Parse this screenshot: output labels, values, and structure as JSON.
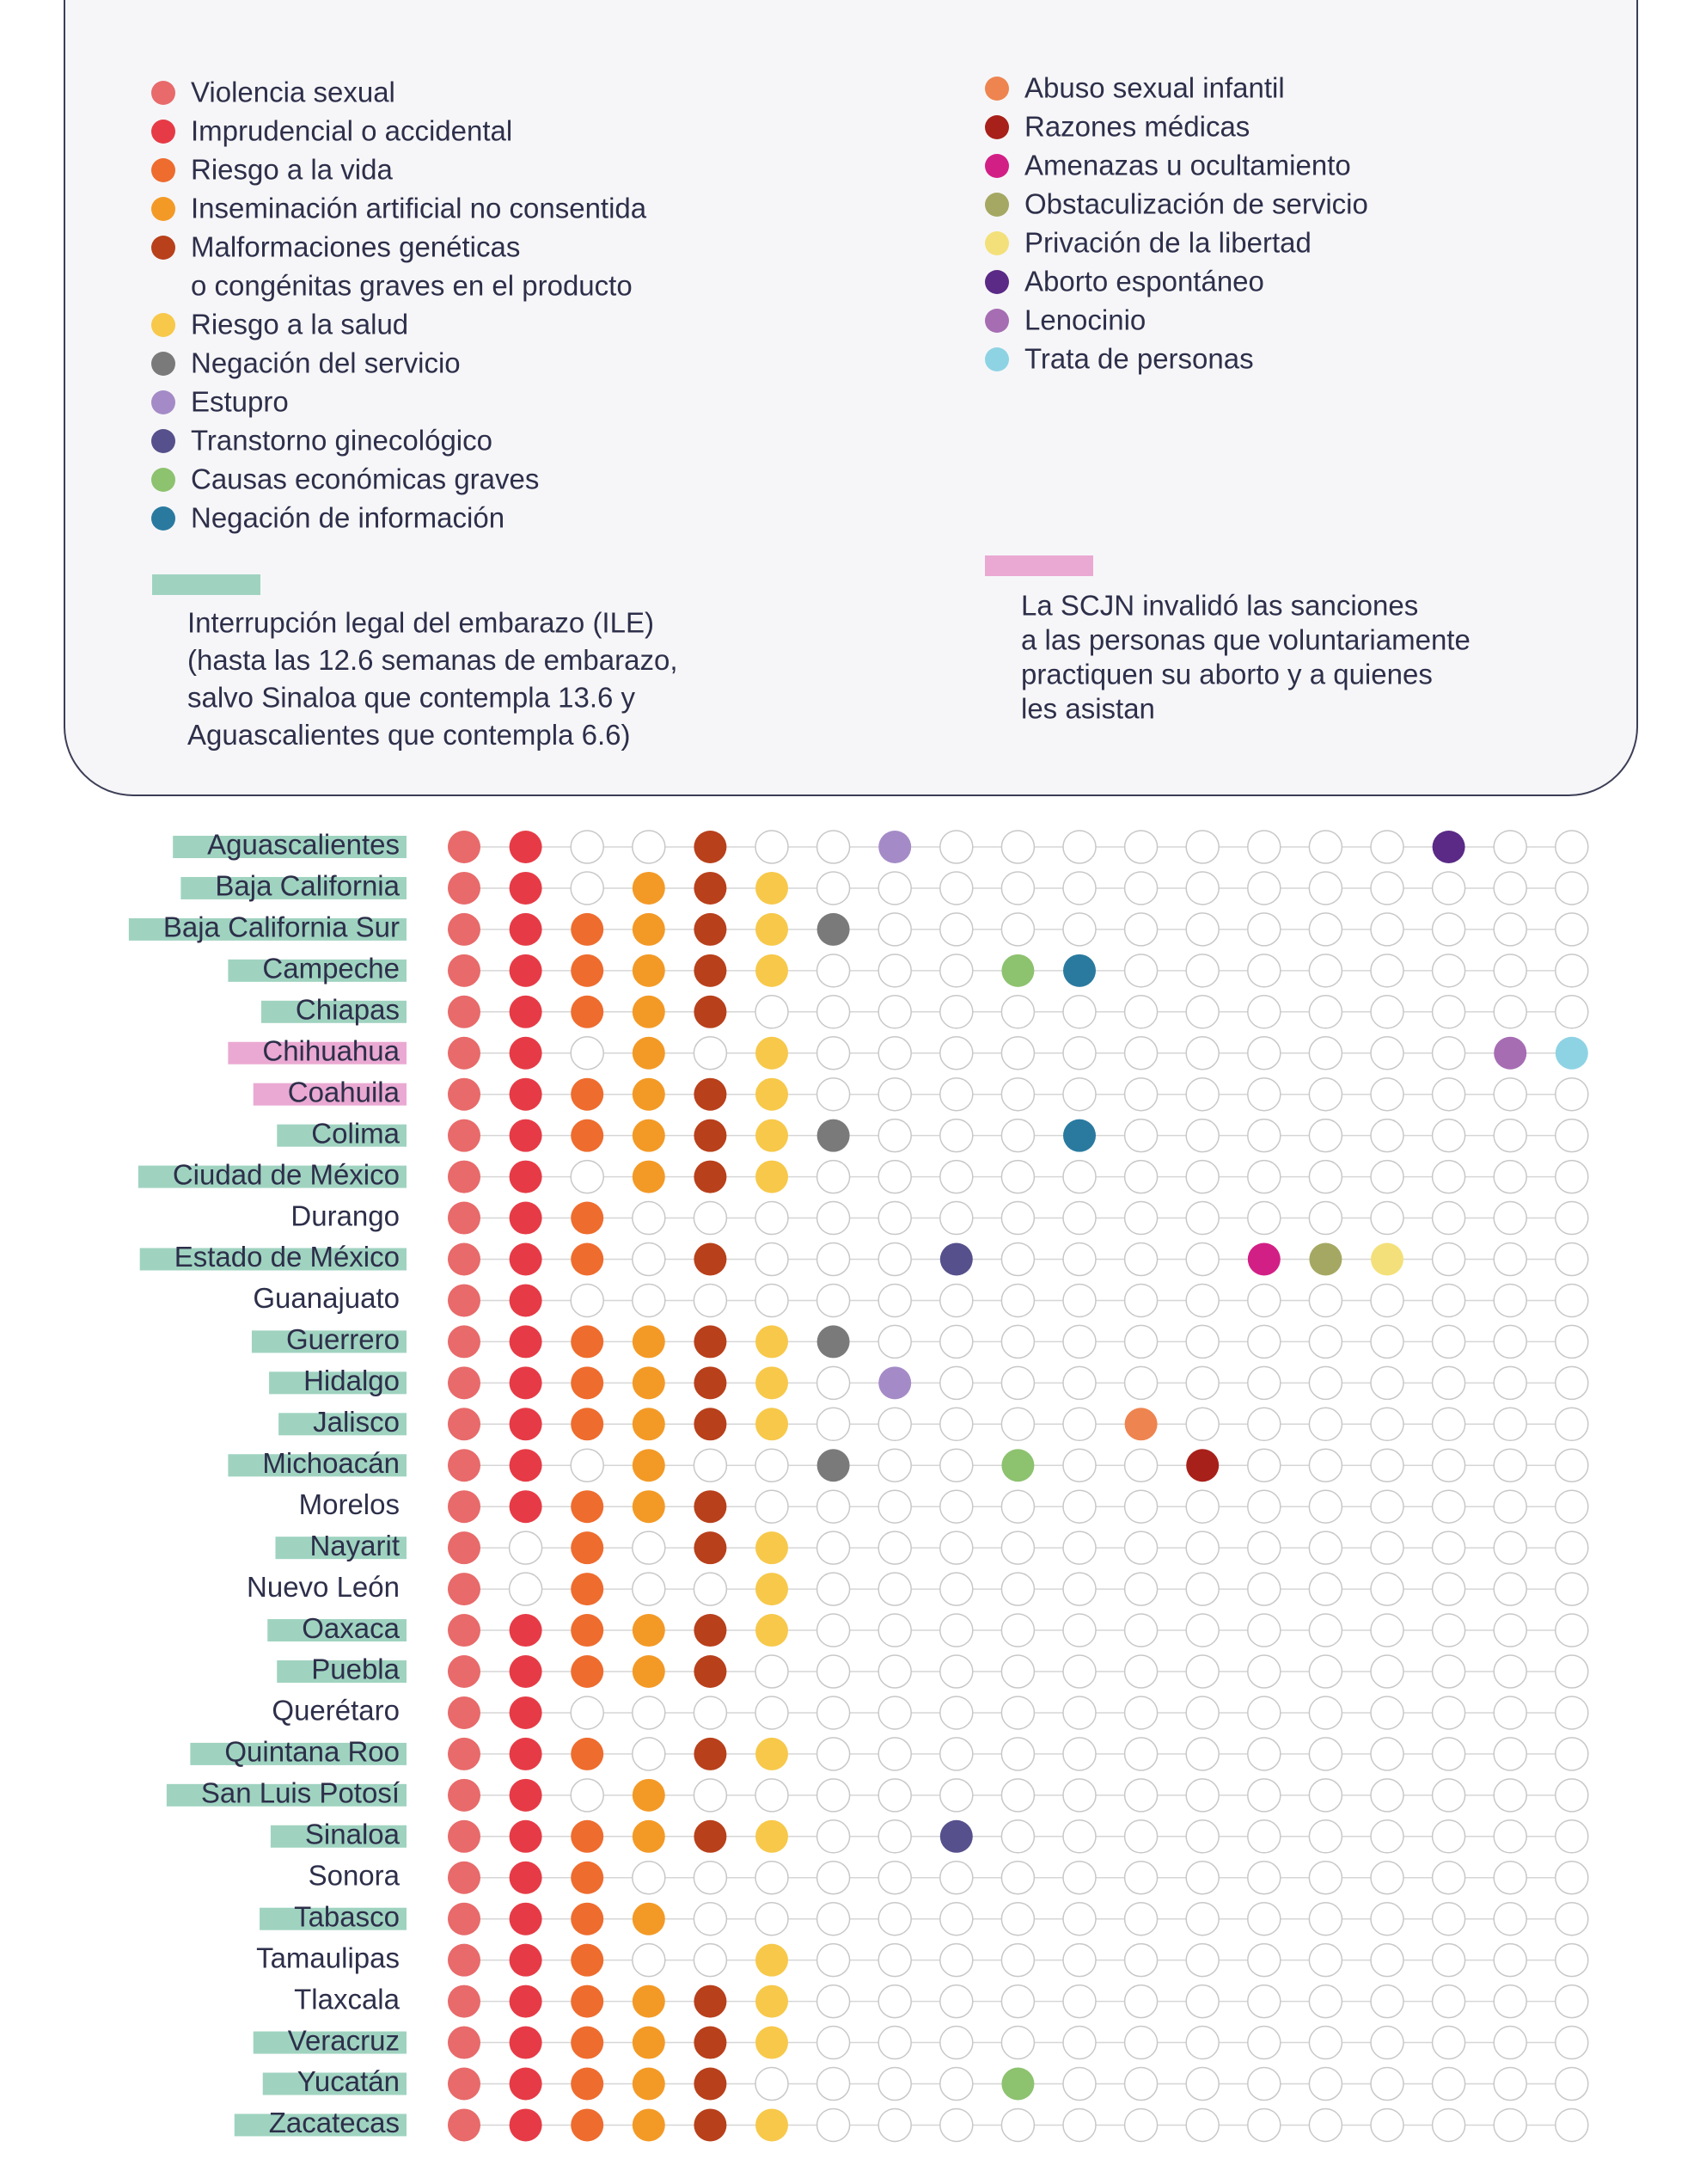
{
  "legend": {
    "causes": [
      {
        "label": [
          "Violencia sexual"
        ],
        "color": "#e86a6a"
      },
      {
        "label": [
          "Imprudencial o accidental"
        ],
        "color": "#e63b46"
      },
      {
        "label": [
          "Riesgo a la vida"
        ],
        "color": "#ee6c2e"
      },
      {
        "label": [
          "Inseminación artificial no consentida"
        ],
        "color": "#f39a26"
      },
      {
        "label": [
          "Malformaciones genéticas",
          "o congénitas graves en el producto"
        ],
        "color": "#b8401b"
      },
      {
        "label": [
          "Riesgo a la salud"
        ],
        "color": "#f7c84a"
      },
      {
        "label": [
          "Negación del servicio"
        ],
        "color": "#7a7a7a"
      },
      {
        "label": [
          "Estupro"
        ],
        "color": "#a48bc7"
      },
      {
        "label": [
          "Transtorno ginecológico"
        ],
        "color": "#56508c"
      },
      {
        "label": [
          "Causas económicas graves"
        ],
        "color": "#8dc26f"
      },
      {
        "label": [
          "Negación de información"
        ],
        "color": "#2a7aa0"
      },
      {
        "label": [
          "Abuso sexual infantil"
        ],
        "color": "#ee8450"
      },
      {
        "label": [
          "Razones médicas"
        ],
        "color": "#a8201a"
      },
      {
        "label": [
          "Amenazas u ocultamiento"
        ],
        "color": "#d21f86"
      },
      {
        "label": [
          "Obstaculización de servicio"
        ],
        "color": "#a5a862"
      },
      {
        "label": [
          "Privación de la libertad"
        ],
        "color": "#f3e07a"
      },
      {
        "label": [
          "Aborto espontáneo"
        ],
        "color": "#5a2a86"
      },
      {
        "label": [
          "Lenocinio"
        ],
        "color": "#a66db3"
      },
      {
        "label": [
          "Trata de personas"
        ],
        "color": "#8ed3e4"
      }
    ],
    "notes": [
      {
        "color": "#9fd3c0",
        "lines": [
          "Interrupción legal del embarazo (ILE)",
          "(hasta las 12.6 semanas de embarazo,",
          "salvo Sinaloa que contempla 13.6 y",
          "Aguascalientes que contempla 6.6)"
        ]
      },
      {
        "color": "#eaa9d2",
        "lines": [
          "La SCJN invalidó las sanciones",
          "a las personas que voluntariamente",
          "practiquen su aborto y a quienes",
          "les asistan"
        ]
      }
    ]
  },
  "states": [
    {
      "name": "Aguascalientes",
      "note": 0,
      "causes": [
        1,
        1,
        0,
        0,
        1,
        0,
        0,
        1,
        0,
        0,
        0,
        0,
        0,
        0,
        0,
        0,
        1,
        0,
        0
      ]
    },
    {
      "name": "Baja California",
      "note": 0,
      "causes": [
        1,
        1,
        0,
        1,
        1,
        1,
        0,
        0,
        0,
        0,
        0,
        0,
        0,
        0,
        0,
        0,
        0,
        0,
        0
      ]
    },
    {
      "name": "Baja California Sur",
      "note": 0,
      "causes": [
        1,
        1,
        1,
        1,
        1,
        1,
        1,
        0,
        0,
        0,
        0,
        0,
        0,
        0,
        0,
        0,
        0,
        0,
        0
      ]
    },
    {
      "name": "Campeche",
      "note": 0,
      "causes": [
        1,
        1,
        1,
        1,
        1,
        1,
        0,
        0,
        0,
        1,
        1,
        0,
        0,
        0,
        0,
        0,
        0,
        0,
        0
      ]
    },
    {
      "name": "Chiapas",
      "note": 0,
      "causes": [
        1,
        1,
        1,
        1,
        1,
        0,
        0,
        0,
        0,
        0,
        0,
        0,
        0,
        0,
        0,
        0,
        0,
        0,
        0
      ]
    },
    {
      "name": "Chihuahua",
      "note": 1,
      "causes": [
        1,
        1,
        0,
        1,
        0,
        1,
        0,
        0,
        0,
        0,
        0,
        0,
        0,
        0,
        0,
        0,
        0,
        1,
        1
      ]
    },
    {
      "name": "Coahuila",
      "note": 1,
      "causes": [
        1,
        1,
        1,
        1,
        1,
        1,
        0,
        0,
        0,
        0,
        0,
        0,
        0,
        0,
        0,
        0,
        0,
        0,
        0
      ]
    },
    {
      "name": "Colima",
      "note": 0,
      "causes": [
        1,
        1,
        1,
        1,
        1,
        1,
        1,
        0,
        0,
        0,
        1,
        0,
        0,
        0,
        0,
        0,
        0,
        0,
        0
      ]
    },
    {
      "name": "Ciudad de México",
      "note": 0,
      "causes": [
        1,
        1,
        0,
        1,
        1,
        1,
        0,
        0,
        0,
        0,
        0,
        0,
        0,
        0,
        0,
        0,
        0,
        0,
        0
      ]
    },
    {
      "name": "Durango",
      "note": null,
      "causes": [
        1,
        1,
        1,
        0,
        0,
        0,
        0,
        0,
        0,
        0,
        0,
        0,
        0,
        0,
        0,
        0,
        0,
        0,
        0
      ]
    },
    {
      "name": "Estado de México",
      "note": 0,
      "causes": [
        1,
        1,
        1,
        0,
        1,
        0,
        0,
        0,
        1,
        0,
        0,
        0,
        0,
        1,
        1,
        1,
        0,
        0,
        0
      ]
    },
    {
      "name": "Guanajuato",
      "note": null,
      "causes": [
        1,
        1,
        0,
        0,
        0,
        0,
        0,
        0,
        0,
        0,
        0,
        0,
        0,
        0,
        0,
        0,
        0,
        0,
        0
      ]
    },
    {
      "name": "Guerrero",
      "note": 0,
      "causes": [
        1,
        1,
        1,
        1,
        1,
        1,
        1,
        0,
        0,
        0,
        0,
        0,
        0,
        0,
        0,
        0,
        0,
        0,
        0
      ]
    },
    {
      "name": "Hidalgo",
      "note": 0,
      "causes": [
        1,
        1,
        1,
        1,
        1,
        1,
        0,
        1,
        0,
        0,
        0,
        0,
        0,
        0,
        0,
        0,
        0,
        0,
        0
      ]
    },
    {
      "name": "Jalisco",
      "note": 0,
      "causes": [
        1,
        1,
        1,
        1,
        1,
        1,
        0,
        0,
        0,
        0,
        0,
        1,
        0,
        0,
        0,
        0,
        0,
        0,
        0
      ]
    },
    {
      "name": "Michoacán",
      "note": 0,
      "causes": [
        1,
        1,
        0,
        1,
        0,
        0,
        1,
        0,
        0,
        1,
        0,
        0,
        1,
        0,
        0,
        0,
        0,
        0,
        0
      ]
    },
    {
      "name": "Morelos",
      "note": null,
      "causes": [
        1,
        1,
        1,
        1,
        1,
        0,
        0,
        0,
        0,
        0,
        0,
        0,
        0,
        0,
        0,
        0,
        0,
        0,
        0
      ]
    },
    {
      "name": "Nayarit",
      "note": 0,
      "causes": [
        1,
        0,
        1,
        0,
        1,
        1,
        0,
        0,
        0,
        0,
        0,
        0,
        0,
        0,
        0,
        0,
        0,
        0,
        0
      ]
    },
    {
      "name": "Nuevo León",
      "note": null,
      "causes": [
        1,
        0,
        1,
        0,
        0,
        1,
        0,
        0,
        0,
        0,
        0,
        0,
        0,
        0,
        0,
        0,
        0,
        0,
        0
      ]
    },
    {
      "name": "Oaxaca",
      "note": 0,
      "causes": [
        1,
        1,
        1,
        1,
        1,
        1,
        0,
        0,
        0,
        0,
        0,
        0,
        0,
        0,
        0,
        0,
        0,
        0,
        0
      ]
    },
    {
      "name": "Puebla",
      "note": 0,
      "causes": [
        1,
        1,
        1,
        1,
        1,
        0,
        0,
        0,
        0,
        0,
        0,
        0,
        0,
        0,
        0,
        0,
        0,
        0,
        0
      ]
    },
    {
      "name": "Querétaro",
      "note": null,
      "causes": [
        1,
        1,
        0,
        0,
        0,
        0,
        0,
        0,
        0,
        0,
        0,
        0,
        0,
        0,
        0,
        0,
        0,
        0,
        0
      ]
    },
    {
      "name": "Quintana Roo",
      "note": 0,
      "causes": [
        1,
        1,
        1,
        0,
        1,
        1,
        0,
        0,
        0,
        0,
        0,
        0,
        0,
        0,
        0,
        0,
        0,
        0,
        0
      ]
    },
    {
      "name": "San Luis Potosí",
      "note": 0,
      "causes": [
        1,
        1,
        0,
        1,
        0,
        0,
        0,
        0,
        0,
        0,
        0,
        0,
        0,
        0,
        0,
        0,
        0,
        0,
        0
      ]
    },
    {
      "name": "Sinaloa",
      "note": 0,
      "causes": [
        1,
        1,
        1,
        1,
        1,
        1,
        0,
        0,
        1,
        0,
        0,
        0,
        0,
        0,
        0,
        0,
        0,
        0,
        0
      ]
    },
    {
      "name": "Sonora",
      "note": null,
      "causes": [
        1,
        1,
        1,
        0,
        0,
        0,
        0,
        0,
        0,
        0,
        0,
        0,
        0,
        0,
        0,
        0,
        0,
        0,
        0
      ]
    },
    {
      "name": "Tabasco",
      "note": 0,
      "causes": [
        1,
        1,
        1,
        1,
        0,
        0,
        0,
        0,
        0,
        0,
        0,
        0,
        0,
        0,
        0,
        0,
        0,
        0,
        0
      ]
    },
    {
      "name": "Tamaulipas",
      "note": null,
      "causes": [
        1,
        1,
        1,
        0,
        0,
        1,
        0,
        0,
        0,
        0,
        0,
        0,
        0,
        0,
        0,
        0,
        0,
        0,
        0
      ]
    },
    {
      "name": "Tlaxcala",
      "note": null,
      "causes": [
        1,
        1,
        1,
        1,
        1,
        1,
        0,
        0,
        0,
        0,
        0,
        0,
        0,
        0,
        0,
        0,
        0,
        0,
        0
      ]
    },
    {
      "name": "Veracruz",
      "note": 0,
      "causes": [
        1,
        1,
        1,
        1,
        1,
        1,
        0,
        0,
        0,
        0,
        0,
        0,
        0,
        0,
        0,
        0,
        0,
        0,
        0
      ]
    },
    {
      "name": "Yucatán",
      "note": 0,
      "causes": [
        1,
        1,
        1,
        1,
        1,
        0,
        0,
        0,
        0,
        1,
        0,
        0,
        0,
        0,
        0,
        0,
        0,
        0,
        0
      ]
    },
    {
      "name": "Zacatecas",
      "note": 0,
      "causes": [
        1,
        1,
        1,
        1,
        1,
        1,
        0,
        0,
        0,
        0,
        0,
        0,
        0,
        0,
        0,
        0,
        0,
        0,
        0
      ]
    }
  ]
}
